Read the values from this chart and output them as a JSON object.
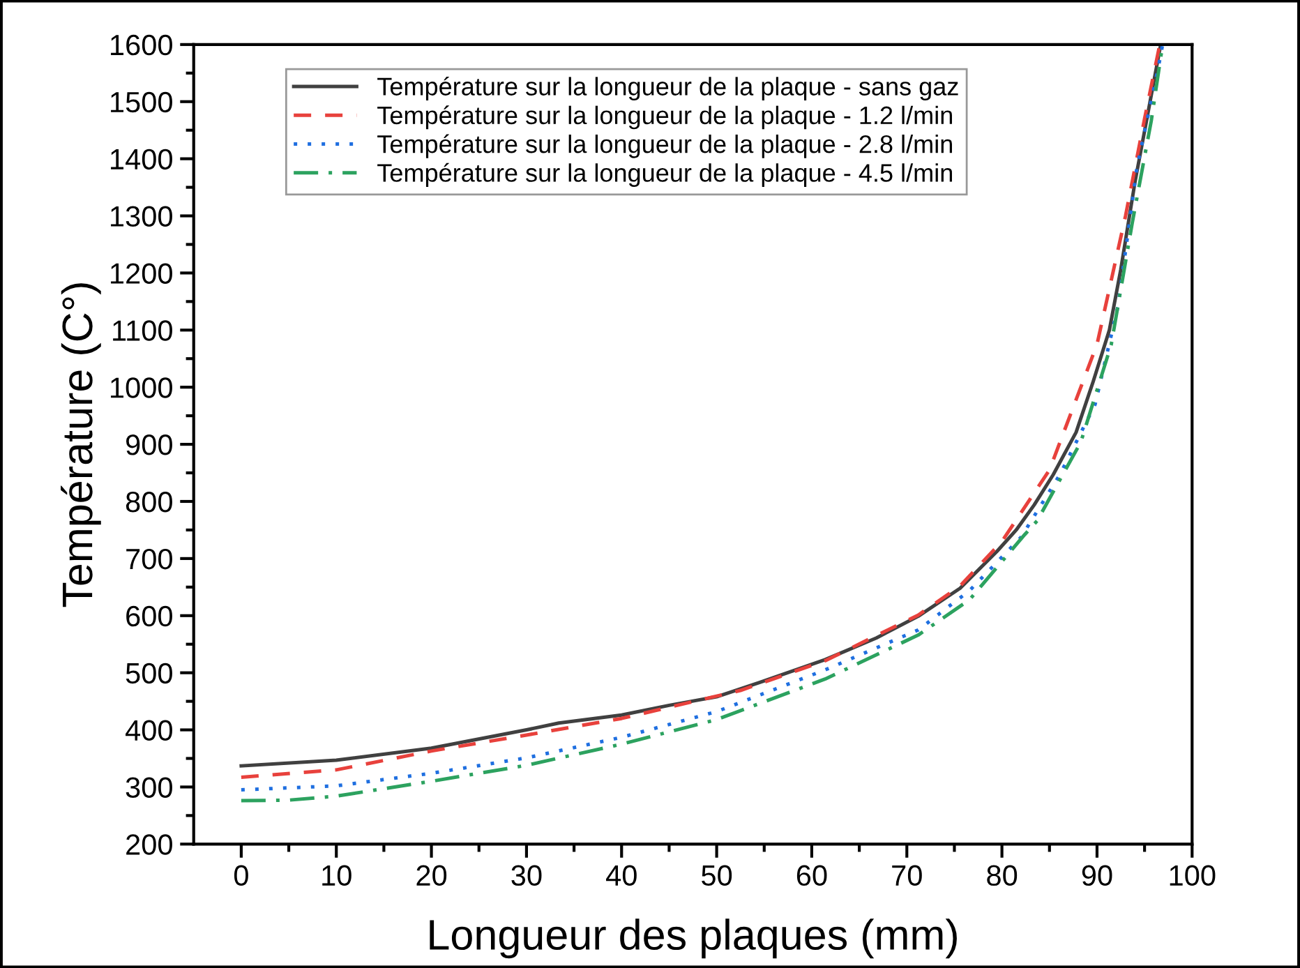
{
  "chart_data": {
    "type": "line",
    "xlabel": "Longueur des plaques (mm)",
    "ylabel": "Température (C°)",
    "xlim": [
      -5,
      100
    ],
    "xticks": [
      0,
      {
        "value": 5,
        "label": null
      },
      10,
      {
        "value": 15,
        "label": null
      },
      20,
      {
        "value": 25,
        "label": null
      },
      30,
      {
        "value": 35,
        "label": null
      },
      40,
      {
        "value": 45,
        "label": null
      },
      50,
      {
        "value": 55,
        "label": null
      },
      60,
      {
        "value": 65,
        "label": null
      },
      70,
      {
        "value": 75,
        "label": null
      },
      80,
      {
        "value": 85,
        "label": null
      },
      90,
      {
        "value": 95,
        "label": null
      },
      100
    ],
    "ylim": [
      200,
      1600
    ],
    "yticks": [
      200,
      {
        "value": 250,
        "label": null
      },
      300,
      {
        "value": 350,
        "label": null
      },
      400,
      {
        "value": 450,
        "label": null
      },
      500,
      {
        "value": 550,
        "label": null
      },
      600,
      {
        "value": 650,
        "label": null
      },
      700,
      {
        "value": 750,
        "label": null
      },
      800,
      {
        "value": 850,
        "label": null
      },
      900,
      {
        "value": 950,
        "label": null
      },
      1000,
      {
        "value": 1050,
        "label": null
      },
      1100,
      {
        "value": 1150,
        "label": null
      },
      1200,
      {
        "value": 1250,
        "label": null
      },
      1300,
      {
        "value": 1350,
        "label": null
      },
      1400,
      {
        "value": 1450,
        "label": null
      },
      1500,
      {
        "value": 1550,
        "label": null
      },
      1600
    ],
    "grid": false,
    "legend": "top left",
    "marker": "none",
    "series": [
      {
        "name": "Température sur la longueur de la plaque - sans gaz",
        "color": "#404040",
        "line_style": "solid",
        "x": [
          0,
          10,
          20,
          30,
          33.4,
          40,
          45,
          50,
          54.5,
          61.4,
          66.8,
          71.2,
          75.6,
          79.5,
          81.5,
          83.4,
          85.4,
          87.8,
          89.6,
          91.3,
          92.5,
          94.0,
          95.2,
          96.7
        ],
        "values": [
          337,
          347,
          368,
          400,
          412,
          426,
          443,
          458,
          483,
          523,
          561,
          599,
          648,
          713,
          750,
          794,
          847,
          921,
          1010,
          1100,
          1206,
          1360,
          1466,
          1600
        ]
      },
      {
        "name": "Température sur la longueur de la plaque - 1.2 l/min",
        "color": "#e8413c",
        "line_style": "dashed",
        "x": [
          0,
          10,
          20,
          30,
          40,
          52.5,
          61.4,
          71.2,
          75.6,
          80,
          85,
          90,
          93,
          95,
          96.6
        ],
        "values": [
          317,
          330,
          363,
          391,
          420,
          469,
          521,
          601,
          652,
          730,
          855,
          1075,
          1300,
          1470,
          1600
        ]
      },
      {
        "name": "Température sur la longueur de la plaque - 2.8 l/min",
        "color": "#1f6fe0",
        "line_style": "dotted",
        "x": [
          0,
          10,
          20,
          30,
          40,
          50,
          61.4,
          71.2,
          76.6,
          82,
          86.1,
          89.8,
          92.2,
          94.2,
          96.4,
          96.9
        ],
        "values": [
          295,
          302,
          324,
          351,
          387,
          432,
          505,
          575,
          644,
          737,
          847,
          970,
          1141,
          1385,
          1556,
          1600
        ]
      },
      {
        "name": "Température sur la longueur de la plaque - 4.5 l/min",
        "color": "#2ca25f",
        "line_style": "dashdot",
        "x": [
          0,
          5,
          10,
          20,
          30,
          40,
          50,
          61.4,
          71.2,
          76.6,
          82.4,
          83.7,
          88.3,
          91.5,
          93.7,
          95.7,
          96.9
        ],
        "values": [
          276,
          277,
          284,
          310,
          338,
          375,
          418,
          489,
          566,
          628,
          742,
          766,
          904,
          1075,
          1287,
          1466,
          1600
        ]
      }
    ]
  }
}
